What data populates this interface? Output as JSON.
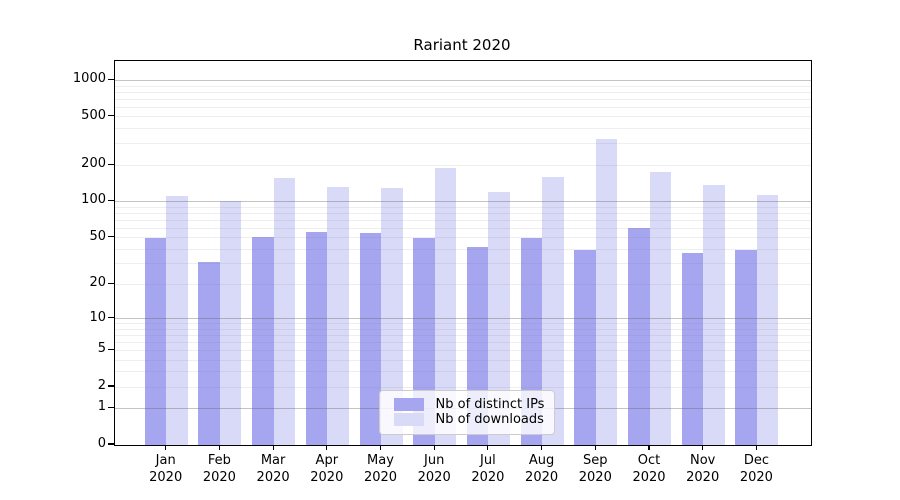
{
  "chart_data": {
    "type": "bar",
    "title": "Rariant 2020",
    "x_tick_months": [
      "Jan",
      "Feb",
      "Mar",
      "Apr",
      "May",
      "Jun",
      "Jul",
      "Aug",
      "Sep",
      "Oct",
      "Nov",
      "Dec"
    ],
    "x_tick_year": "2020",
    "series": [
      {
        "name": "Nb of distinct IPs",
        "color": "#a5a5f0",
        "values": [
          49,
          31,
          50,
          55,
          54,
          49,
          41,
          49,
          39,
          60,
          37,
          39
        ]
      },
      {
        "name": "Nb of downloads",
        "color": "#d9d9f8",
        "values": [
          111,
          100,
          156,
          131,
          128,
          187,
          118,
          158,
          328,
          174,
          135,
          113
        ]
      }
    ],
    "y_ticks": [
      0,
      1,
      2,
      5,
      10,
      20,
      50,
      100,
      200,
      500,
      1000
    ],
    "y_scale": "log1p",
    "y_max": 1445,
    "xlabel": "",
    "ylabel": "",
    "grid": "horizontal, log minors faint, decades darker",
    "legend_position": "lower center"
  },
  "colors": {
    "distinct_ips": "#a5a5f0",
    "downloads": "#d9d9f8",
    "grid_major": "rgba(100,100,100,0.38)",
    "grid_minor": "rgba(120,120,120,0.13)",
    "spine": "#000000",
    "background": "#ffffff"
  }
}
